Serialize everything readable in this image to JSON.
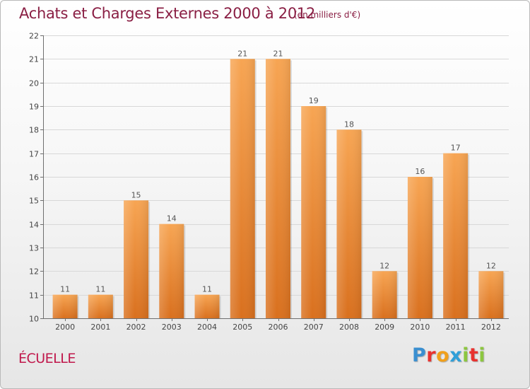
{
  "header": {
    "title": "Achats et Charges Externes 2000 à 2012",
    "subtitle": "(en milliers d'€)"
  },
  "commune": "ÉCUELLE",
  "logo": {
    "letters": [
      "P",
      "r",
      "o",
      "x",
      "i",
      "t",
      "i"
    ],
    "colors": [
      "#3a8fd0",
      "#e8322f",
      "#f1a01b",
      "#2f9fd8",
      "#8cc63f",
      "#e8322f",
      "#8cc63f"
    ]
  },
  "colors": {
    "bar_top": "#f7a553",
    "bar_bottom": "#d9701e",
    "grid": "#d8d8d8",
    "axis": "#6f6f6f"
  },
  "chart_data": {
    "type": "bar",
    "categories": [
      "2000",
      "2001",
      "2002",
      "2003",
      "2004",
      "2005",
      "2006",
      "2007",
      "2008",
      "2009",
      "2010",
      "2011",
      "2012"
    ],
    "values": [
      11,
      11,
      15,
      14,
      11,
      21,
      21,
      19,
      18,
      12,
      16,
      17,
      12
    ],
    "ylim": [
      10,
      22
    ],
    "yticks": [
      10,
      11,
      12,
      13,
      14,
      15,
      16,
      17,
      18,
      19,
      20,
      21,
      22
    ],
    "grid": true
  }
}
